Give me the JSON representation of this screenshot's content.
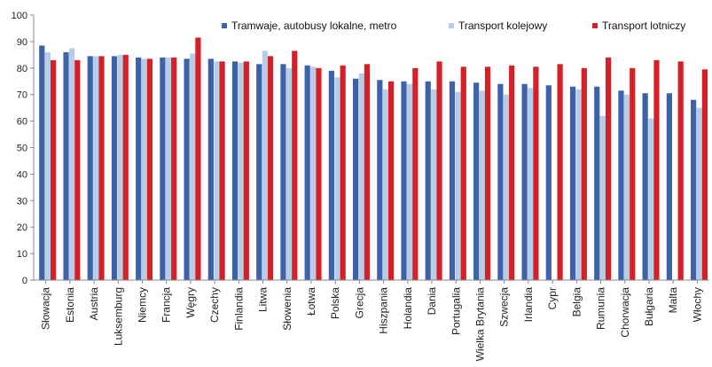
{
  "chart_data": {
    "type": "bar",
    "title": "",
    "xlabel": "",
    "ylabel": "",
    "ylim": [
      0,
      100
    ],
    "yticks": [
      0,
      10,
      20,
      30,
      40,
      50,
      60,
      70,
      80,
      90,
      100
    ],
    "grid": false,
    "legend_position": "top-right",
    "categories": [
      "Słowacja",
      "Estonia",
      "Austria",
      "Luksemburg",
      "Niemcy",
      "Francja",
      "Węgry",
      "Czechy",
      "Finlandia",
      "Litwa",
      "Słowenia",
      "Łotwa",
      "Polska",
      "Grecja",
      "Hiszpania",
      "Holandia",
      "Dania",
      "Portugalia",
      "Wielka Brytania",
      "Szwecja",
      "Irlandia",
      "Cypr",
      "Belgia",
      "Rumunia",
      "Chorwacja",
      "Bułgaria",
      "Malta",
      "Włochy"
    ],
    "series": [
      {
        "name": "Tramwaje, autobusy lokalne, metro",
        "color": "#3d62a8",
        "values": [
          88.5,
          86.0,
          84.5,
          84.5,
          84.0,
          84.0,
          83.5,
          83.5,
          82.5,
          81.5,
          81.5,
          81.0,
          79.0,
          76.0,
          75.5,
          75.0,
          75.0,
          75.0,
          74.5,
          74.0,
          74.0,
          73.5,
          73.0,
          73.0,
          71.5,
          70.5,
          70.5,
          68.0
        ]
      },
      {
        "name": "Transport kolejowy",
        "color": "#b7cde6",
        "values": [
          86.0,
          87.5,
          84.5,
          85.0,
          83.5,
          84.0,
          85.5,
          82.5,
          82.0,
          86.5,
          80.0,
          80.5,
          76.5,
          78.0,
          72.0,
          74.0,
          72.0,
          71.0,
          71.5,
          70.0,
          72.5,
          0,
          72.0,
          62.0,
          70.0,
          61.0,
          0,
          65.0
        ]
      },
      {
        "name": "Transport lotniczy",
        "color": "#d42027",
        "values": [
          83.0,
          83.0,
          84.5,
          85.0,
          83.5,
          84.0,
          91.5,
          82.5,
          82.5,
          84.5,
          86.5,
          80.0,
          81.0,
          81.5,
          75.0,
          80.0,
          82.5,
          80.5,
          80.5,
          81.0,
          80.5,
          81.5,
          80.0,
          84.0,
          80.0,
          83.0,
          82.5,
          79.5
        ]
      }
    ]
  }
}
